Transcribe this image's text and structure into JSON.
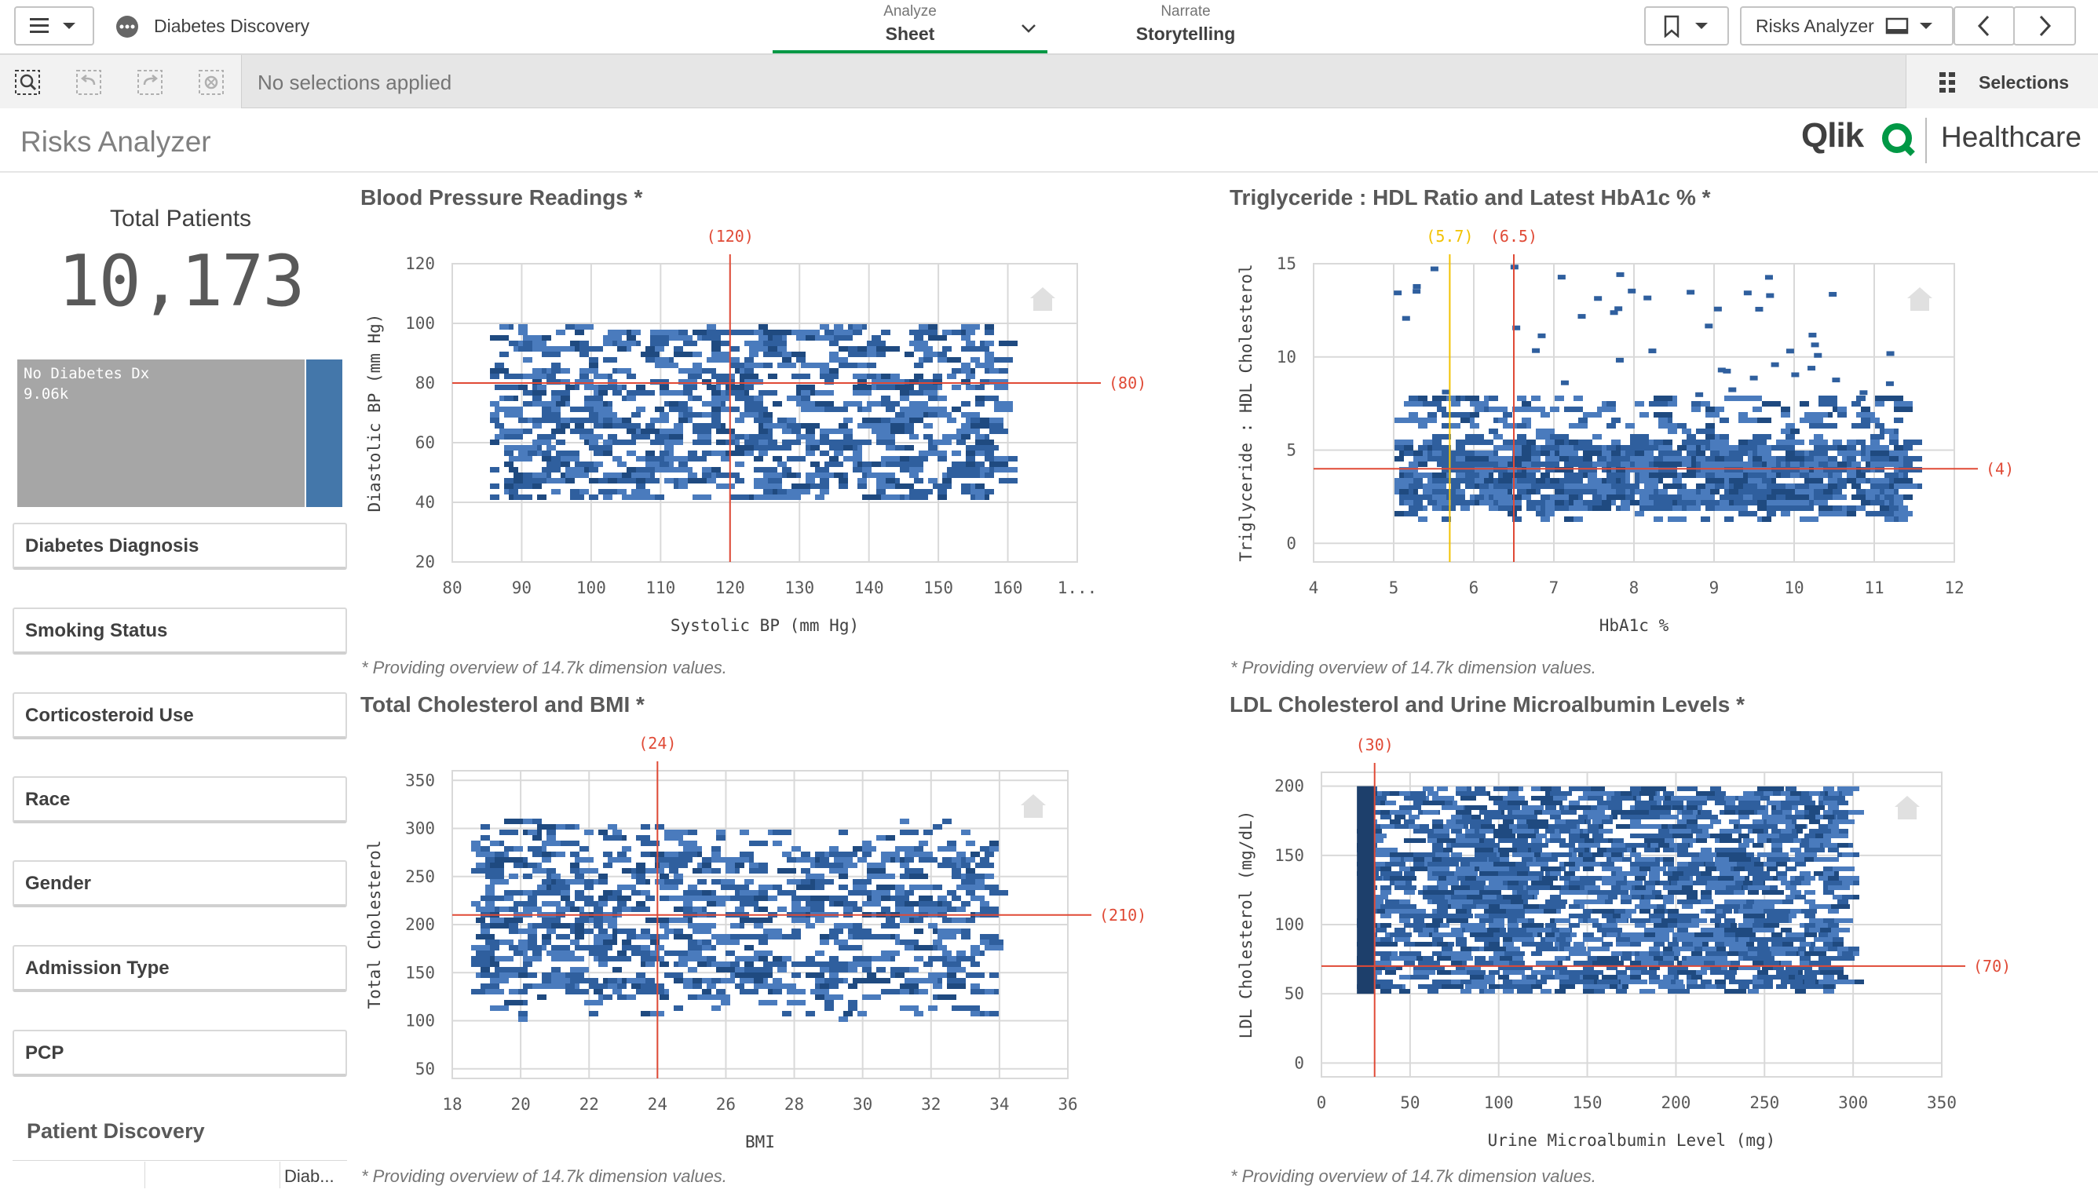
{
  "app": {
    "title": "Diabetes Discovery"
  },
  "tabs": [
    {
      "small": "Analyze",
      "big": "Sheet"
    },
    {
      "small": "Narrate",
      "big": "Storytelling"
    }
  ],
  "sheet_selector": {
    "label": "Risks Analyzer"
  },
  "selection_bar": {
    "no_selections": "No selections applied",
    "selections_label": "Selections"
  },
  "sheet": {
    "title": "Risks Analyzer",
    "brand": "Qlik",
    "brand_suffix": "Healthcare"
  },
  "kpi": {
    "label": "Total Patients",
    "value": "10,173"
  },
  "treemap": {
    "label": "No Diabetes Dx",
    "value": "9.06k",
    "fraction": 0.89,
    "colors": {
      "gray": "#a6a6a6",
      "blue": "#4477aa"
    }
  },
  "filters": [
    "Diabetes Diagnosis",
    "Smoking Status",
    "Corticosteroid Use",
    "Race",
    "Gender",
    "Admission Type",
    "PCP"
  ],
  "patient_discovery": {
    "title": "Patient Discovery",
    "column": "Diab..."
  },
  "note": "* Providing overview of 14.7k dimension values.",
  "colors": {
    "point": "#2f5f9e",
    "refline": "#e04a36",
    "refline_yellow": "#f2c200",
    "grid": "#d9d9d9"
  },
  "chart_data": [
    {
      "type": "scatter",
      "title": "Blood Pressure Readings *",
      "xlabel": "Systolic BP (mm Hg)",
      "ylabel": "Diastolic BP (mm Hg)",
      "xlim": [
        80,
        170
      ],
      "ylim": [
        20,
        120
      ],
      "xticks": [
        "80",
        "90",
        "100",
        "110",
        "120",
        "130",
        "140",
        "150",
        "160",
        "1..."
      ],
      "yticks": [
        20,
        40,
        60,
        80,
        100,
        120
      ],
      "xticks_values": [
        80,
        90,
        100,
        110,
        120,
        130,
        140,
        150,
        160,
        170
      ],
      "ref_x": [
        {
          "value": 120,
          "label": "(120)",
          "color": "#e04a36"
        }
      ],
      "ref_y": [
        {
          "value": 80,
          "label": "(80)",
          "color": "#e04a36"
        }
      ],
      "density": {
        "x_range": [
          85,
          160
        ],
        "y_range": [
          40,
          100
        ],
        "cells": 1100,
        "dense_y": null
      }
    },
    {
      "type": "scatter",
      "title": "Triglyceride : HDL Ratio and Latest HbA1c % *",
      "xlabel": "HbA1c %",
      "ylabel": "Triglyceride : HDL Cholesterol",
      "xlim": [
        4,
        12
      ],
      "ylim": [
        -1,
        15
      ],
      "xticks": [
        "4",
        "5",
        "6",
        "7",
        "8",
        "9",
        "10",
        "11",
        "12"
      ],
      "xticks_values": [
        4,
        5,
        6,
        7,
        8,
        9,
        10,
        11,
        12
      ],
      "yticks": [
        0,
        5,
        10,
        15
      ],
      "ref_x": [
        {
          "value": 5.7,
          "label": "(5.7)",
          "color": "#f2c200"
        },
        {
          "value": 6.5,
          "label": "(6.5)",
          "color": "#e04a36"
        }
      ],
      "ref_y": [
        {
          "value": 4,
          "label": "(4)",
          "color": "#e04a36"
        }
      ],
      "density": {
        "x_range": [
          5,
          11.5
        ],
        "y_range": [
          1,
          8
        ],
        "cells": 1300,
        "dense_y": [
          2,
          5.5
        ],
        "outliers": 45
      }
    },
    {
      "type": "scatter",
      "title": "Total Cholesterol and BMI *",
      "xlabel": "BMI",
      "ylabel": "Total Cholesterol",
      "xlim": [
        18,
        36
      ],
      "ylim": [
        40,
        360
      ],
      "xticks": [
        "18",
        "20",
        "22",
        "24",
        "26",
        "28",
        "30",
        "32",
        "34",
        "36"
      ],
      "xticks_values": [
        18,
        20,
        22,
        24,
        26,
        28,
        30,
        32,
        34,
        36
      ],
      "yticks": [
        50,
        100,
        150,
        200,
        250,
        300,
        350
      ],
      "ref_x": [
        {
          "value": 24,
          "label": "(24)",
          "color": "#e04a36"
        }
      ],
      "ref_y": [
        {
          "value": 210,
          "label": "(210)",
          "color": "#e04a36"
        }
      ],
      "density": {
        "x_range": [
          18.5,
          34
        ],
        "y_range": [
          100,
          310
        ],
        "cells": 1100,
        "dense_y": [
          130,
          280
        ]
      }
    },
    {
      "type": "scatter",
      "title": "LDL Cholesterol and Urine Microalbumin Levels *",
      "xlabel": "Urine Microalbumin Level (mg)",
      "ylabel": "LDL Cholesterol (mg/dL)",
      "xlim": [
        0,
        350
      ],
      "ylim": [
        -10,
        210
      ],
      "xticks": [
        "0",
        "50",
        "100",
        "150",
        "200",
        "250",
        "300",
        "350"
      ],
      "xticks_values": [
        0,
        50,
        100,
        150,
        200,
        250,
        300,
        350
      ],
      "yticks": [
        0,
        50,
        100,
        150,
        200
      ],
      "ref_x": [
        {
          "value": 30,
          "label": "(30)",
          "color": "#e04a36"
        }
      ],
      "ref_y": [
        {
          "value": 70,
          "label": "(70)",
          "color": "#e04a36"
        }
      ],
      "density": {
        "x_range": [
          20,
          300
        ],
        "y_range": [
          50,
          200
        ],
        "cells": 4200,
        "dense_y": null,
        "dense_band": [
          20,
          30
        ]
      }
    }
  ]
}
